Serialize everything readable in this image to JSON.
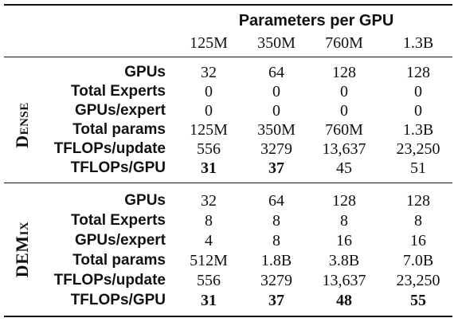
{
  "table": {
    "group_header": "Parameters per GPU",
    "columns": [
      "125M",
      "350M",
      "760M",
      "1.3B"
    ],
    "sections": [
      {
        "label_first": "D",
        "label_rest": "ENSE",
        "rows": [
          {
            "label": "GPUs",
            "values": [
              "32",
              "64",
              "128",
              "128"
            ],
            "bold": [
              false,
              false,
              false,
              false
            ]
          },
          {
            "label": "Total Experts",
            "values": [
              "0",
              "0",
              "0",
              "0"
            ],
            "bold": [
              false,
              false,
              false,
              false
            ]
          },
          {
            "label": "GPUs/expert",
            "values": [
              "0",
              "0",
              "0",
              "0"
            ],
            "bold": [
              false,
              false,
              false,
              false
            ]
          },
          {
            "label": "Total params",
            "values": [
              "125M",
              "350M",
              "760M",
              "1.3B"
            ],
            "bold": [
              false,
              false,
              false,
              false
            ]
          },
          {
            "label": "TFLOPs/update",
            "values": [
              "556",
              "3279",
              "13,637",
              "23,250"
            ],
            "bold": [
              false,
              false,
              false,
              false
            ]
          },
          {
            "label": "TFLOPs/GPU",
            "values": [
              "31",
              "37",
              "45",
              "51"
            ],
            "bold": [
              true,
              true,
              false,
              false
            ]
          }
        ]
      },
      {
        "label_first": "DEM",
        "label_rest": "IX",
        "rows": [
          {
            "label": "GPUs",
            "values": [
              "32",
              "64",
              "128",
              "128"
            ],
            "bold": [
              false,
              false,
              false,
              false
            ]
          },
          {
            "label": "Total Experts",
            "values": [
              "8",
              "8",
              "8",
              "8"
            ],
            "bold": [
              false,
              false,
              false,
              false
            ]
          },
          {
            "label": "GPUs/expert",
            "values": [
              "4",
              "8",
              "16",
              "16"
            ],
            "bold": [
              false,
              false,
              false,
              false
            ]
          },
          {
            "label": "Total params",
            "values": [
              "512M",
              "1.8B",
              "3.8B",
              "7.0B"
            ],
            "bold": [
              false,
              false,
              false,
              false
            ]
          },
          {
            "label": "TFLOPs/update",
            "values": [
              "556",
              "3279",
              "13,637",
              "23,250"
            ],
            "bold": [
              false,
              false,
              false,
              false
            ]
          },
          {
            "label": "TFLOPs/GPU",
            "values": [
              "31",
              "37",
              "48",
              "55"
            ],
            "bold": [
              true,
              true,
              true,
              true
            ]
          }
        ]
      }
    ]
  }
}
